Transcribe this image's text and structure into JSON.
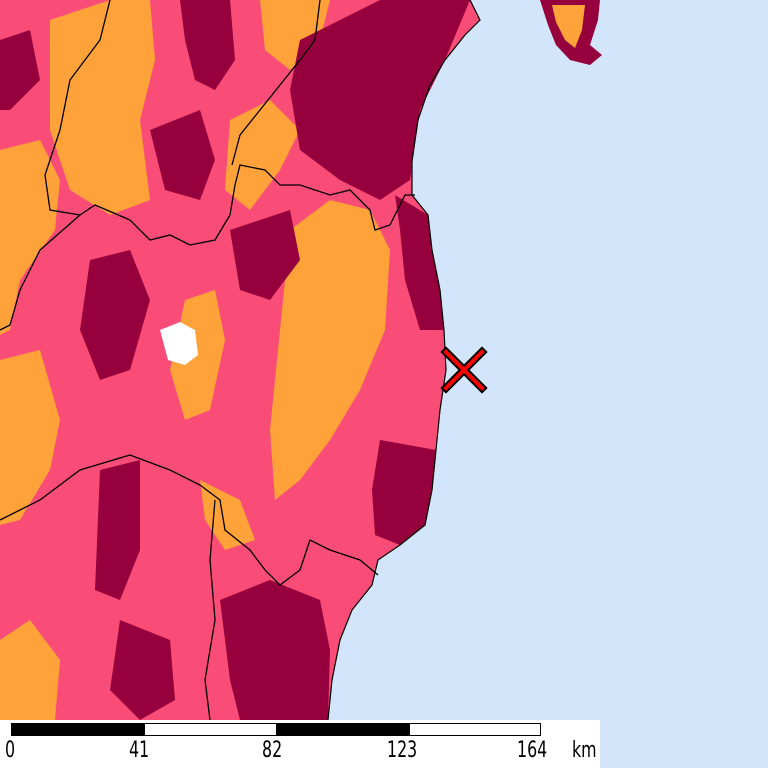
{
  "map": {
    "colors": {
      "sea": "#d2e5fb",
      "land_base": "#f94d78",
      "high": "#96003c",
      "low": "#ffa23a",
      "lake": "#ffffff",
      "borders": "#000000"
    },
    "epicenter_marker": {
      "icon": "x-mark-icon",
      "color": "#ff0000"
    }
  },
  "scalebar": {
    "ticks": [
      "0",
      "41",
      "82",
      "123",
      "164"
    ],
    "unit": "km"
  }
}
